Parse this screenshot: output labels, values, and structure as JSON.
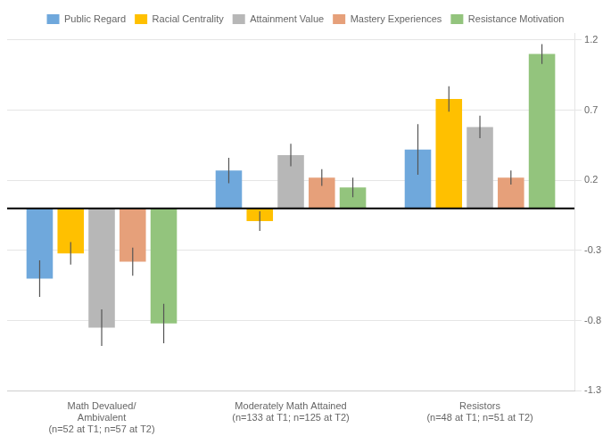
{
  "chart_data": {
    "type": "bar",
    "categories": [
      "Math Devalued/\nAmbivalent\n(n=52 at T1; n=57 at T2)",
      "Moderately Math Attained\n(n=133 at T1; n=125 at T2)",
      "Resistors\n(n=48 at T1; n=51 at T2)"
    ],
    "series": [
      {
        "name": "Public Regard",
        "color": "#6fa8dc",
        "values": [
          -0.5,
          0.27,
          0.42
        ],
        "errors": [
          0.13,
          0.09,
          0.18
        ]
      },
      {
        "name": "Racial Centrality",
        "color": "#ffc000",
        "values": [
          -0.32,
          -0.09,
          0.78
        ],
        "errors": [
          0.08,
          0.07,
          0.09
        ]
      },
      {
        "name": "Attainment Value",
        "color": "#b7b7b7",
        "values": [
          -0.85,
          0.38,
          0.58
        ],
        "errors": [
          0.13,
          0.08,
          0.08
        ]
      },
      {
        "name": "Mastery Experiences",
        "color": "#e6a07a",
        "values": [
          -0.38,
          0.22,
          0.22
        ],
        "errors": [
          0.1,
          0.06,
          0.05
        ]
      },
      {
        "name": "Resistance Motivation",
        "color": "#93c47d",
        "values": [
          -0.82,
          0.15,
          1.1
        ],
        "errors": [
          0.14,
          0.07,
          0.07
        ]
      }
    ],
    "ylim": [
      -1.3,
      1.25
    ],
    "yticks": [
      -1.3,
      -0.8,
      -0.3,
      0.2,
      0.7,
      1.2
    ],
    "grid": true,
    "legend": "top"
  }
}
